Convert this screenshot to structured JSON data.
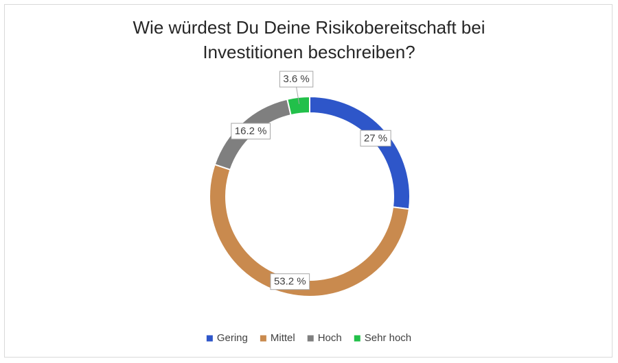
{
  "chart_data": {
    "type": "donut",
    "title": "Wie würdest Du Deine Risikobereitschaft bei Investitionen beschreiben?",
    "categories": [
      "Gering",
      "Mittel",
      "Hoch",
      "Sehr hoch"
    ],
    "values": [
      27,
      53.2,
      16.2,
      3.6
    ],
    "value_labels": [
      "27 %",
      "53.2 %",
      "16.2 %",
      "3.6 %"
    ],
    "colors": [
      "#2e56c9",
      "#c98a4e",
      "#7f7f7f",
      "#22c04a"
    ],
    "legend": "bottom"
  }
}
